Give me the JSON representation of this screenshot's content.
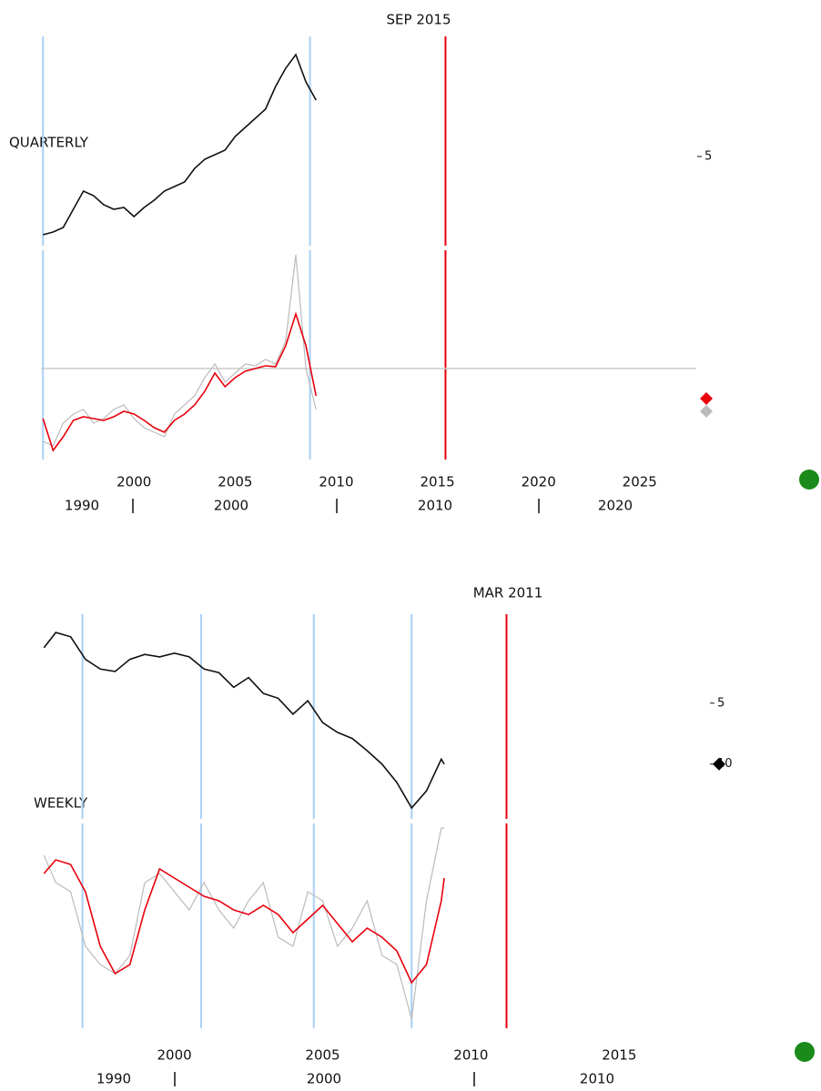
{
  "chart_data": [
    {
      "type": "line",
      "title": "SEP 2015",
      "label": "QUARTERLY",
      "xlim": [
        1995.4,
        2027.8
      ],
      "xticks": [
        2000,
        2005,
        2010,
        2015,
        2020,
        2025
      ],
      "x2_labels": [
        "1990",
        "2000",
        "2010",
        "2020"
      ],
      "vlines": [
        {
          "value": 1995.5,
          "color": "#a8d0f5"
        },
        {
          "value": 2008.7,
          "color": "#a8d0f5"
        }
      ],
      "cursor": {
        "value": 2015.4,
        "color": "#e8000b"
      },
      "x": [
        1995.5,
        1996,
        1996.5,
        1997,
        1997.5,
        1998,
        1998.5,
        1999,
        1999.5,
        2000,
        2000.5,
        2001,
        2001.5,
        2002,
        2002.5,
        2003,
        2003.5,
        2004,
        2004.5,
        2005,
        2005.5,
        2006,
        2006.5,
        2007,
        2007.5,
        2008,
        2008.5,
        2009
      ],
      "panels": [
        {
          "ylim": [
            -4.8,
            18.2
          ],
          "yticks": [
            5
          ],
          "series": [
            {
              "color": "#111111",
              "values": [
                -3.6,
                -3.3,
                -2.8,
                -0.8,
                1.2,
                0.7,
                -0.3,
                -0.8,
                -0.6,
                -1.6,
                -0.6,
                0.2,
                1.2,
                1.7,
                2.2,
                3.7,
                4.7,
                5.2,
                5.7,
                7.2,
                8.2,
                9.2,
                10.2,
                12.7,
                14.7,
                16.2,
                13.2,
                11.2
              ]
            }
          ]
        },
        {
          "ylim": [
            -10,
            13
          ],
          "zero_line": true,
          "series": [
            {
              "color": "#bbbbbb",
              "values": [
                -8,
                -8.5,
                -6,
                -5,
                -4.5,
                -6,
                -5.5,
                -4.5,
                -4,
                -5.5,
                -6.5,
                -7,
                -7.5,
                -5,
                -4,
                -3,
                -1,
                0.5,
                -1.5,
                -0.5,
                0.5,
                0.3,
                1,
                0.5,
                3,
                12.5,
                0,
                -4.5
              ],
              "marker": -4.7
            },
            {
              "color": "#e8000b",
              "values": [
                -5.5,
                -9,
                -7.5,
                -5.7,
                -5.3,
                -5.5,
                -5.7,
                -5.3,
                -4.7,
                -5,
                -5.7,
                -6.5,
                -7,
                -5.7,
                -5,
                -4,
                -2.5,
                -0.5,
                -2,
                -1,
                -0.3,
                0,
                0.3,
                0.2,
                2.5,
                6,
                2.5,
                -3
              ],
              "marker": -3.3
            }
          ]
        }
      ]
    },
    {
      "type": "line",
      "title": "MAR 2011",
      "label": "WEEKLY",
      "xlim": [
        1995.5,
        2017.6
      ],
      "xticks": [
        2000,
        2005,
        2010,
        2015
      ],
      "x2_labels": [
        "1990",
        "2000",
        "2010"
      ],
      "vlines": [
        {
          "value": 1996.9,
          "color": "#a8d0f5"
        },
        {
          "value": 2000.9,
          "color": "#a8d0f5"
        },
        {
          "value": 2004.7,
          "color": "#a8d0f5"
        },
        {
          "value": 2008.0,
          "color": "#a8d0f5"
        }
      ],
      "cursor": {
        "value": 2011.2,
        "color": "#e8000b"
      },
      "x": [
        1995.6,
        1996,
        1996.5,
        1997,
        1997.5,
        1998,
        1998.5,
        1999,
        1999.5,
        2000,
        2000.5,
        2001,
        2001.5,
        2002,
        2002.5,
        2003,
        2003.5,
        2004,
        2004.5,
        2005,
        2005.5,
        2006,
        2006.5,
        2007,
        2007.5,
        2008,
        2008.5,
        2009,
        2009.1
      ],
      "panels": [
        {
          "ylim": [
            14.5,
            -2.3
          ],
          "yticks": [
            5,
            10
          ],
          "series": [
            {
              "color": "#111111",
              "values": [
                0.45,
                -0.8,
                -0.45,
                1.4,
                2.2,
                2.4,
                1.4,
                1.0,
                1.2,
                0.9,
                1.2,
                2.2,
                2.5,
                3.7,
                2.9,
                4.2,
                4.6,
                5.9,
                4.8,
                6.6,
                7.4,
                7.9,
                8.9,
                10,
                11.5,
                13.6,
                12.2,
                9.6,
                10
              ],
              "marker": 10
            }
          ]
        },
        {
          "ylim": [
            -11,
            11.5
          ],
          "series": [
            {
              "color": "#bbbbbb",
              "values": [
                8,
                5,
                4,
                -2,
                -4,
                -5,
                -3,
                5,
                6,
                4,
                2,
                5,
                2,
                0,
                3,
                5,
                -1,
                -2,
                4,
                3,
                -2,
                0,
                3,
                -3,
                -4,
                -10,
                3,
                11,
                11
              ]
            },
            {
              "color": "#e8000b",
              "values": [
                6,
                7.5,
                7,
                4,
                -2,
                -5,
                -4,
                2,
                6.5,
                5.5,
                4.5,
                3.5,
                3,
                2,
                1.5,
                2.5,
                1.5,
                -0.5,
                1,
                2.5,
                0.5,
                -1.5,
                0,
                -1,
                -2.5,
                -6,
                -4,
                3,
                5.5
              ]
            }
          ]
        }
      ]
    }
  ]
}
